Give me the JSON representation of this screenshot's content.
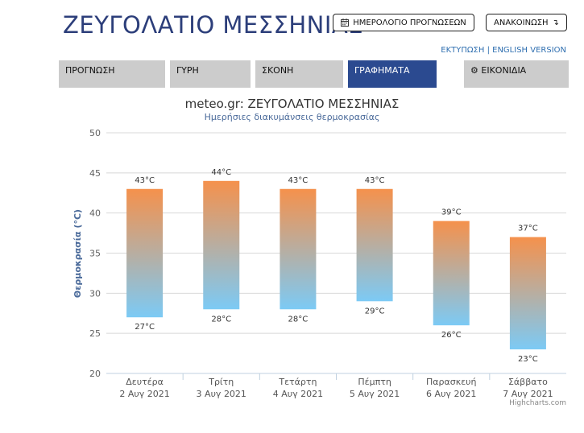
{
  "header": {
    "title": "ΖΕΥΓΟΛΑΤΙΟ ΜΕΣΣΗΝΙΑΣ",
    "calendar_button": "ΗΜΕΡΟΛΟΓΙΟ ΠΡΟΓΝΩΣΕΩΝ",
    "announcements_button": "ΑΝΑΚΟΙΝΩΣΗ",
    "print_link": "ΕΚΤΥΠΩΣΗ",
    "separator": "|",
    "english_link": "ENGLISH VERSION"
  },
  "tabs": [
    {
      "label": "ΠΡΟΓΝΩΣΗ"
    },
    {
      "label": "ΓΥΡΗ"
    },
    {
      "label": "ΣΚΟΝΗ"
    },
    {
      "label": "ΓΡΑΦΗΜΑΤΑ"
    },
    {
      "label": "ΕΙΚΟΝΙΔΙΑ"
    }
  ],
  "credit": "Highcharts.com",
  "colors": {
    "brand": "#2c3e7a",
    "active_tab": "#2b4a90",
    "bar_top": "#f5914c",
    "bar_bottom": "#7ccaf5"
  },
  "chart_data": {
    "type": "bar",
    "title": "meteo.gr: ΖΕΥΓΟΛΑΤΙΟ ΜΕΣΣΗΝΙΑΣ",
    "subtitle": "Ημερήσιες διακυμάνσεις θερμοκρασίας",
    "ylabel": "Θερμοκρασία (°C)",
    "ylim": [
      20,
      50
    ],
    "yticks": [
      20,
      25,
      30,
      35,
      40,
      45,
      50
    ],
    "unit": "°C",
    "grid": true,
    "categories": [
      {
        "day": "Δευτέρα",
        "date": "2 Αυγ 2021"
      },
      {
        "day": "Τρίτη",
        "date": "3 Αυγ 2021"
      },
      {
        "day": "Τετάρτη",
        "date": "4 Αυγ 2021"
      },
      {
        "day": "Πέμπτη",
        "date": "5 Αυγ 2021"
      },
      {
        "day": "Παρασκευή",
        "date": "6 Αυγ 2021"
      },
      {
        "day": "Σάββατο",
        "date": "7 Αυγ 2021"
      }
    ],
    "max": [
      43,
      44,
      43,
      43,
      39,
      37
    ],
    "min": [
      27,
      28,
      28,
      29,
      26,
      23
    ]
  }
}
